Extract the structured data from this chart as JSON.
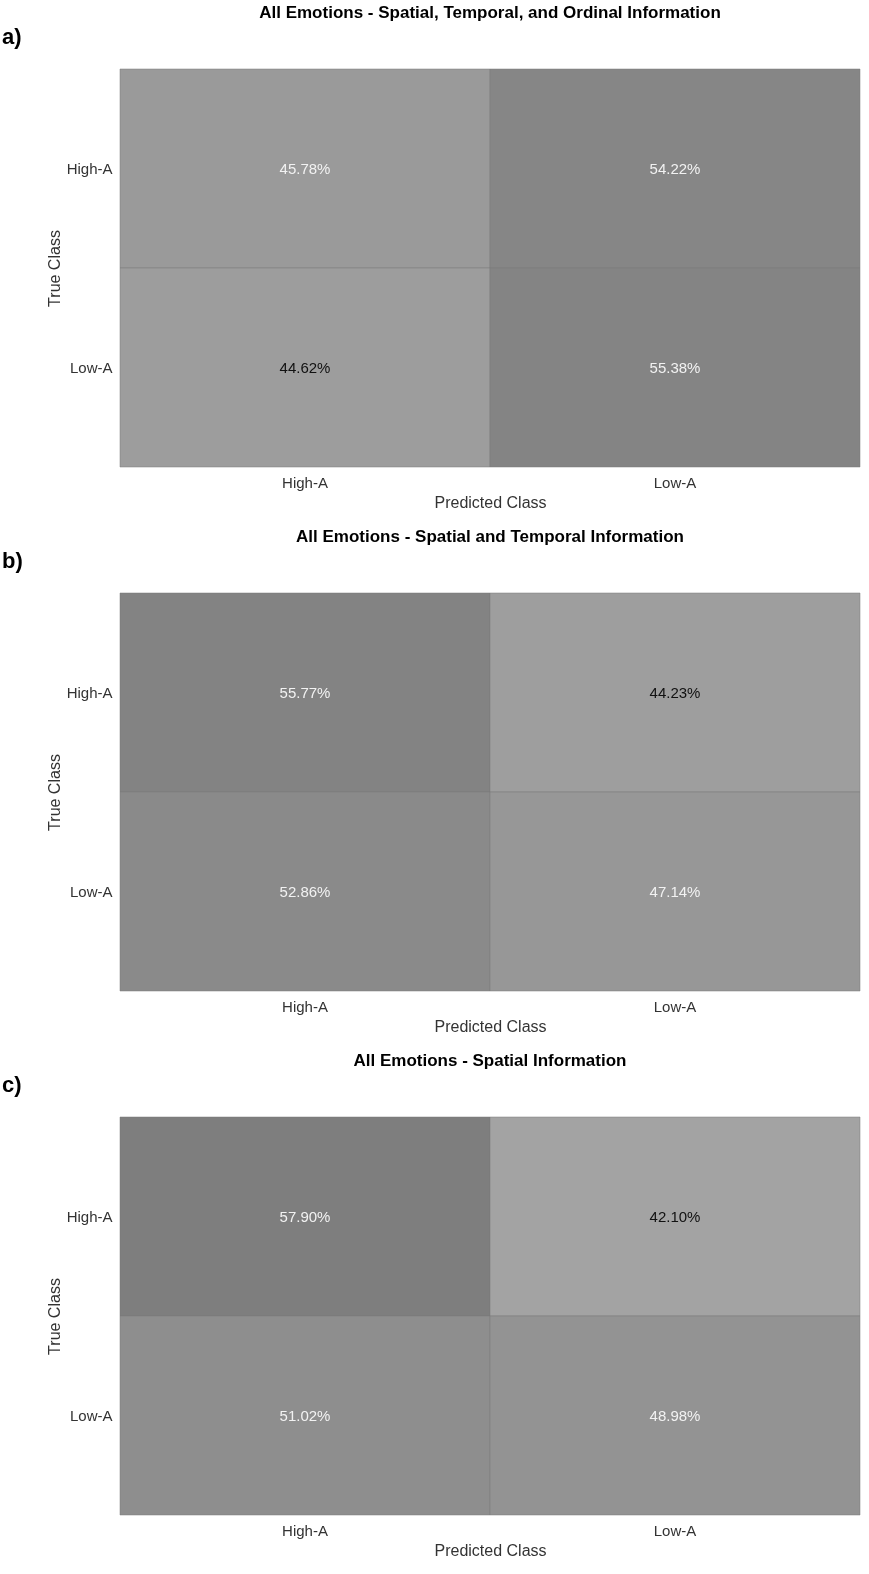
{
  "chart_data": [
    {
      "type": "heatmap",
      "title": "All Emotions - Spatial, Temporal, and Ordinal Information",
      "xlabel": "Predicted Class",
      "ylabel": "True Class",
      "categories": [
        "High-A",
        "Low-A"
      ],
      "y_categories": [
        "High-A",
        "Low-A"
      ],
      "cells": [
        [
          45.78,
          54.22
        ],
        [
          44.62,
          55.38
        ]
      ],
      "cell_labels": [
        [
          "45.78%",
          "54.22%"
        ],
        [
          "44.62%",
          "55.38%"
        ]
      ],
      "annotations": [
        "a)"
      ]
    },
    {
      "type": "heatmap",
      "title": "All Emotions - Spatial and Temporal Information",
      "xlabel": "Predicted Class",
      "ylabel": "True Class",
      "categories": [
        "High-A",
        "Low-A"
      ],
      "y_categories": [
        "High-A",
        "Low-A"
      ],
      "cells": [
        [
          55.77,
          44.23
        ],
        [
          52.86,
          47.14
        ]
      ],
      "cell_labels": [
        [
          "55.77%",
          "44.23%"
        ],
        [
          "52.86%",
          "47.14%"
        ]
      ],
      "annotations": [
        "b)"
      ]
    },
    {
      "type": "heatmap",
      "title": "All Emotions - Spatial Information",
      "xlabel": "Predicted Class",
      "ylabel": "True Class",
      "categories": [
        "High-A",
        "Low-A"
      ],
      "y_categories": [
        "High-A",
        "Low-A"
      ],
      "cells": [
        [
          57.9,
          42.1
        ],
        [
          51.02,
          48.98
        ]
      ],
      "cell_labels": [
        [
          "57.90%",
          "42.10%"
        ],
        [
          "51.02%",
          "48.98%"
        ]
      ],
      "annotations": [
        "c)"
      ]
    }
  ]
}
